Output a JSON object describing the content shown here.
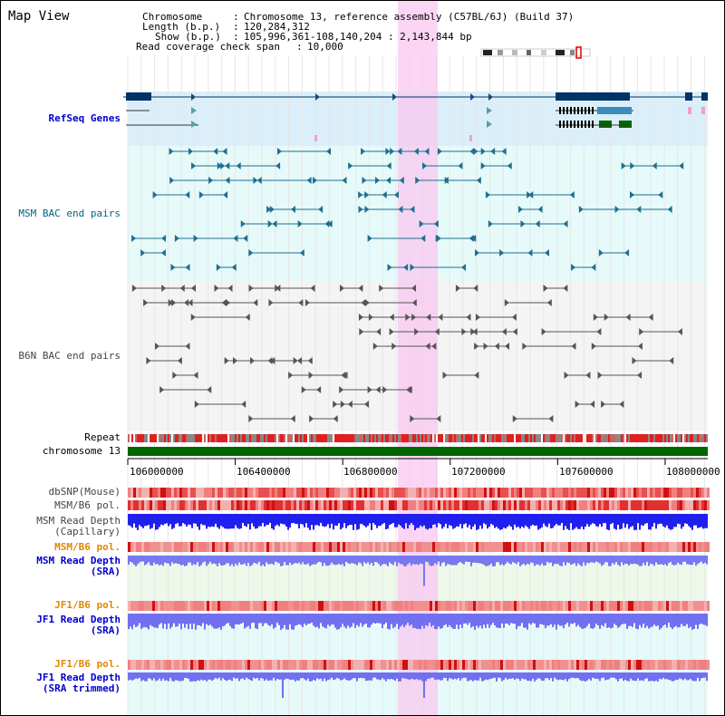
{
  "header": {
    "title": "Map View",
    "chromosome_key": "Chromosome",
    "chromosome_value": "Chromosome 13, reference assembly (C57BL/6J) (Build 37)",
    "length_key": "Length (b.p.)",
    "length_value": "120,284,312",
    "show_key": "Show (b.p.)",
    "show_value": "105,996,361-108,140,204 : 2,143,844 bp",
    "span_key": "Read coverage check span",
    "span_value": "10,000",
    "sep": ":"
  },
  "tracks": {
    "refseq": "RefSeq Genes",
    "msm_bac": "MSM BAC end pairs",
    "b6n_bac": "B6N BAC end pairs",
    "repeat": "Repeat",
    "chromosome": "chromosome 13",
    "dbsnp": "dbSNP(Mouse)",
    "msm_b6_pol_1": "MSM/B6 pol.",
    "msm_read_depth_cap_1": "MSM Read Depth",
    "msm_read_depth_cap_2": "(Capillary)",
    "msm_b6_pol_2": "MSM/B6 pol.",
    "msm_read_depth_sra_1": "MSM Read Depth",
    "msm_read_depth_sra_2": "(SRA)",
    "jf1_b6_pol_1": "JF1/B6 pol.",
    "jf1_read_depth_sra_1": "JF1 Read Depth",
    "jf1_read_depth_sra_2": "(SRA)",
    "jf1_b6_pol_2": "JF1/B6 pol.",
    "jf1_read_depth_trim_1": "JF1 Read Depth",
    "jf1_read_depth_trim_2": "(SRA trimmed)"
  },
  "axis": {
    "ticks": [
      "106000000",
      "106400000",
      "106800000",
      "107200000",
      "107600000",
      "108000000"
    ]
  },
  "colors": {
    "refseq_label": "#0000cc",
    "msm_label": "#006688",
    "b6n_label": "#444444",
    "orange_label": "#e08800",
    "blue_label": "#0000cc",
    "highlight": "#f8c8f0",
    "chromosome_bar": "#006600"
  }
}
